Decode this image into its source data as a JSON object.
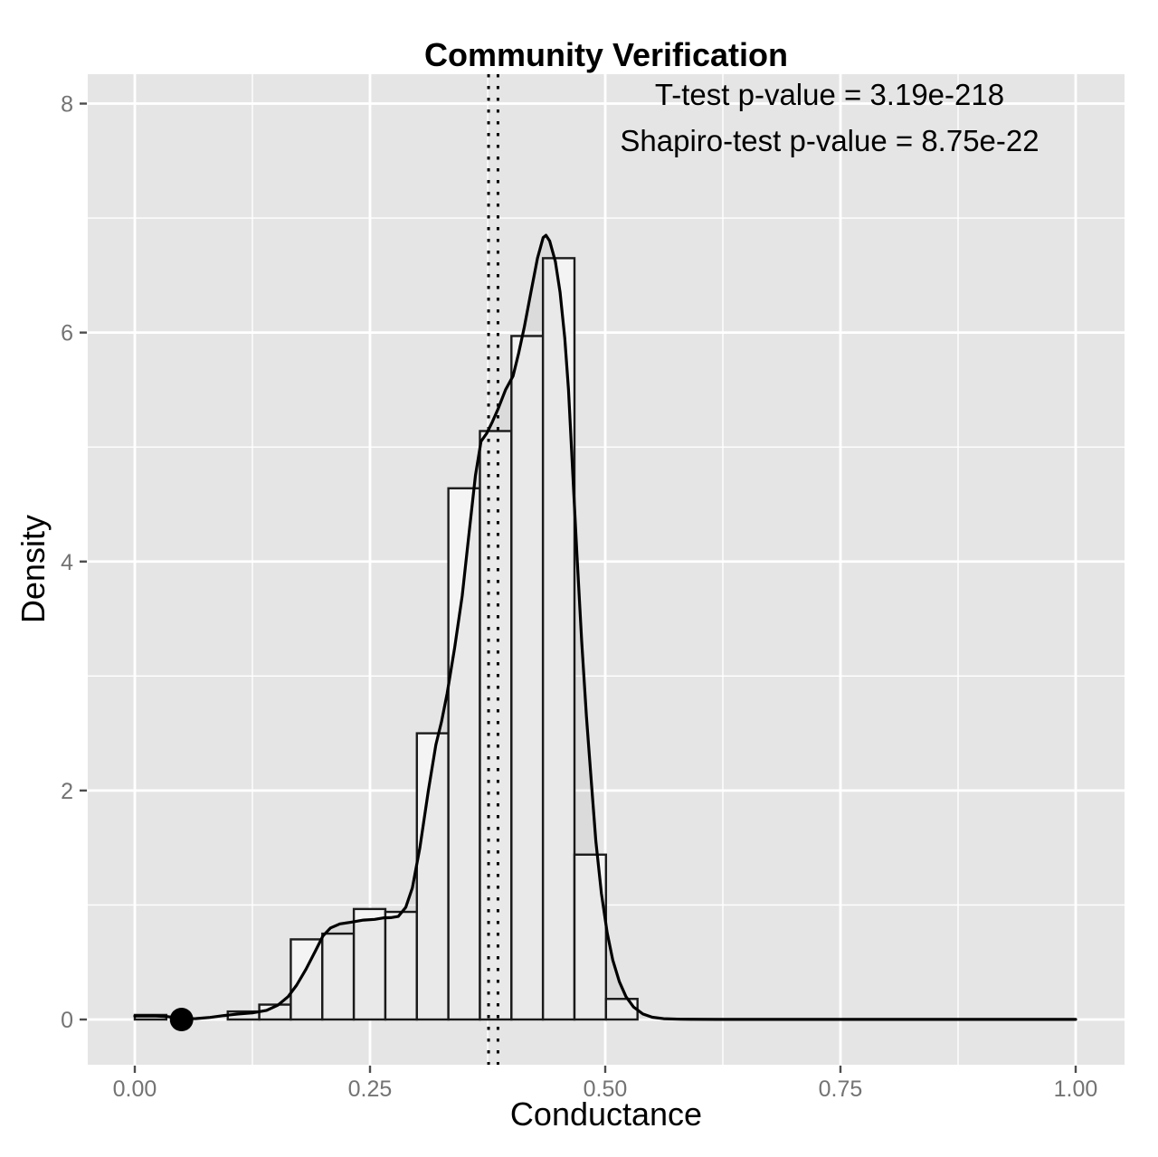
{
  "chart_data": {
    "type": "histogram+density",
    "title": "Community Verification",
    "annotations": [
      "T-test p-value = 3.19e-218",
      "Shapiro-test p-value = 8.75e-22"
    ],
    "xlabel": "Conductance",
    "ylabel": "Density",
    "xlim": [
      -0.05,
      1.05
    ],
    "ylim": [
      -0.4,
      8.26
    ],
    "grid": "on",
    "x_ticks": [
      0,
      0.25,
      0.5,
      0.75,
      1.0
    ],
    "x_tick_labels": [
      "0.00",
      "0.25",
      "0.50",
      "0.75",
      "1.00"
    ],
    "x_minor_ticks": [
      0.125,
      0.375,
      0.625,
      0.875
    ],
    "y_ticks": [
      0,
      2,
      4,
      6,
      8
    ],
    "y_tick_labels": [
      "0",
      "2",
      "4",
      "6",
      "8"
    ],
    "y_minor_ticks": [
      1,
      3,
      5,
      7
    ],
    "bars": [
      {
        "x0": 0.0,
        "x1": 0.0335,
        "h": 0.04
      },
      {
        "x0": 0.0988,
        "x1": 0.1323,
        "h": 0.07
      },
      {
        "x0": 0.1323,
        "x1": 0.1658,
        "h": 0.13
      },
      {
        "x0": 0.1658,
        "x1": 0.1993,
        "h": 0.7
      },
      {
        "x0": 0.1993,
        "x1": 0.2328,
        "h": 0.75
      },
      {
        "x0": 0.2328,
        "x1": 0.2663,
        "h": 0.965
      },
      {
        "x0": 0.2663,
        "x1": 0.2998,
        "h": 0.94
      },
      {
        "x0": 0.2998,
        "x1": 0.3333,
        "h": 2.5
      },
      {
        "x0": 0.3333,
        "x1": 0.3668,
        "h": 4.64
      },
      {
        "x0": 0.3668,
        "x1": 0.4003,
        "h": 5.14
      },
      {
        "x0": 0.4003,
        "x1": 0.4338,
        "h": 5.97
      },
      {
        "x0": 0.4338,
        "x1": 0.4673,
        "h": 6.65
      },
      {
        "x0": 0.4673,
        "x1": 0.5008,
        "h": 1.44
      },
      {
        "x0": 0.5008,
        "x1": 0.5343,
        "h": 0.18
      }
    ],
    "density_curve": [
      [
        0.0,
        0.03
      ],
      [
        0.02,
        0.032
      ],
      [
        0.035,
        0.025
      ],
      [
        0.05,
        0.006
      ],
      [
        0.065,
        0.008
      ],
      [
        0.08,
        0.018
      ],
      [
        0.095,
        0.035
      ],
      [
        0.11,
        0.048
      ],
      [
        0.125,
        0.058
      ],
      [
        0.14,
        0.08
      ],
      [
        0.152,
        0.125
      ],
      [
        0.163,
        0.2
      ],
      [
        0.172,
        0.3
      ],
      [
        0.182,
        0.44
      ],
      [
        0.192,
        0.6
      ],
      [
        0.2,
        0.73
      ],
      [
        0.208,
        0.8
      ],
      [
        0.218,
        0.835
      ],
      [
        0.23,
        0.85
      ],
      [
        0.243,
        0.868
      ],
      [
        0.255,
        0.875
      ],
      [
        0.265,
        0.888
      ],
      [
        0.272,
        0.89
      ],
      [
        0.28,
        0.9
      ],
      [
        0.288,
        0.98
      ],
      [
        0.295,
        1.15
      ],
      [
        0.303,
        1.5
      ],
      [
        0.312,
        2.0
      ],
      [
        0.32,
        2.4
      ],
      [
        0.326,
        2.6
      ],
      [
        0.332,
        2.85
      ],
      [
        0.34,
        3.25
      ],
      [
        0.348,
        3.7
      ],
      [
        0.356,
        4.3
      ],
      [
        0.362,
        4.75
      ],
      [
        0.368,
        5.05
      ],
      [
        0.374,
        5.12
      ],
      [
        0.38,
        5.22
      ],
      [
        0.386,
        5.33
      ],
      [
        0.394,
        5.5
      ],
      [
        0.402,
        5.62
      ],
      [
        0.408,
        5.82
      ],
      [
        0.414,
        6.05
      ],
      [
        0.421,
        6.35
      ],
      [
        0.428,
        6.65
      ],
      [
        0.434,
        6.83
      ],
      [
        0.437,
        6.85
      ],
      [
        0.441,
        6.8
      ],
      [
        0.447,
        6.62
      ],
      [
        0.452,
        6.35
      ],
      [
        0.457,
        5.95
      ],
      [
        0.461,
        5.5
      ],
      [
        0.465,
        4.85
      ],
      [
        0.47,
        4.05
      ],
      [
        0.475,
        3.3
      ],
      [
        0.48,
        2.65
      ],
      [
        0.485,
        2.1
      ],
      [
        0.49,
        1.56
      ],
      [
        0.496,
        1.1
      ],
      [
        0.502,
        0.76
      ],
      [
        0.508,
        0.52
      ],
      [
        0.515,
        0.33
      ],
      [
        0.522,
        0.2
      ],
      [
        0.53,
        0.11
      ],
      [
        0.54,
        0.048
      ],
      [
        0.55,
        0.02
      ],
      [
        0.562,
        0.007
      ],
      [
        0.58,
        0.002
      ],
      [
        0.62,
        0.001
      ],
      [
        0.7,
        0.001
      ],
      [
        0.8,
        0.001
      ],
      [
        0.9,
        0.001
      ],
      [
        1.0,
        0.001
      ]
    ],
    "dotted_vlines": [
      0.376,
      0.386
    ],
    "point": {
      "x": 0.0497,
      "y": 0
    },
    "colors": {
      "figure_bg": "#ffffff",
      "panel_bg": "#e5e5e5",
      "grid": "#ffffff",
      "bar_fill": "#f4f4f4",
      "bar_stroke": "#1c1c1c",
      "curve": "#000000",
      "density_fill_rgba": "rgba(0,0,0,0.045)",
      "axis_text": "#737373",
      "tick_mark": "#4d4d4d",
      "text": "#000000"
    }
  }
}
